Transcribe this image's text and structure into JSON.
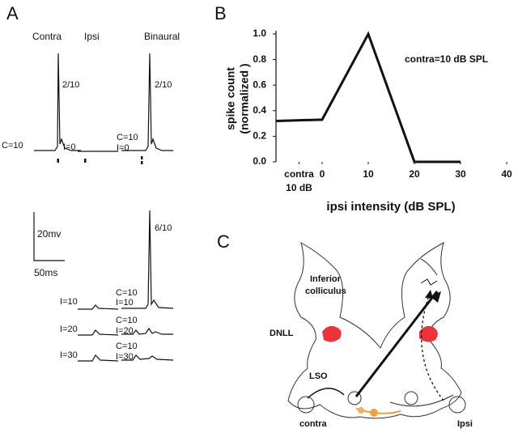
{
  "panel_labels": [
    "A",
    "B",
    "C"
  ],
  "panel_a": {
    "columns": [
      "Contra",
      "Ipsi",
      "Binaural"
    ],
    "top_row": {
      "contra_count": "2/10",
      "contra_label": "C=10",
      "ipsi_label": "I=0",
      "binaural_count": "2/10",
      "binaural_label": [
        "C=10",
        "I=0"
      ]
    },
    "scale_bar": {
      "voltage": "20mv",
      "time": "50ms"
    },
    "lower_count": "6/10",
    "rows": [
      {
        "ipsi_label": "I=10",
        "binaural_label": [
          "C=10",
          "I=10"
        ]
      },
      {
        "ipsi_label": "I=20",
        "binaural_label": [
          "C=10",
          "I=20"
        ]
      },
      {
        "ipsi_label": "I=30",
        "binaural_label": [
          "C=10",
          "I=30"
        ]
      }
    ]
  },
  "chart_data": {
    "type": "line",
    "ylabel": [
      "spike count",
      "(normalized )"
    ],
    "xlabel": "ipsi intensity (dB SPL)",
    "annotation": "contra=10 dB SPL",
    "x": [
      -10,
      0,
      10,
      20,
      30
    ],
    "values": [
      0.32,
      0.33,
      1.0,
      0,
      0
    ],
    "color": "#111111",
    "xlim": [
      -10,
      40
    ],
    "xticks": [
      {
        "value": -5,
        "label": [
          "contra",
          "10 dB"
        ]
      },
      0,
      10,
      20,
      30,
      40
    ],
    "ylim": [
      0,
      1.0
    ],
    "yticks": [
      {
        "value": 0,
        "label": "0.0"
      },
      {
        "value": 0.2,
        "label": "0.2"
      },
      {
        "value": 0.4,
        "label": "0.4"
      },
      {
        "value": 0.6,
        "label": "0.6"
      },
      {
        "value": 0.8,
        "label": "0.8"
      },
      {
        "value": 1.0,
        "label": "1.0"
      }
    ]
  },
  "panel_c": {
    "structure": [
      "Inferior",
      "colliculus"
    ],
    "nucleus": "DNLL",
    "origin": "LSO",
    "left_side": "contra",
    "right_side": "Ipsi"
  }
}
